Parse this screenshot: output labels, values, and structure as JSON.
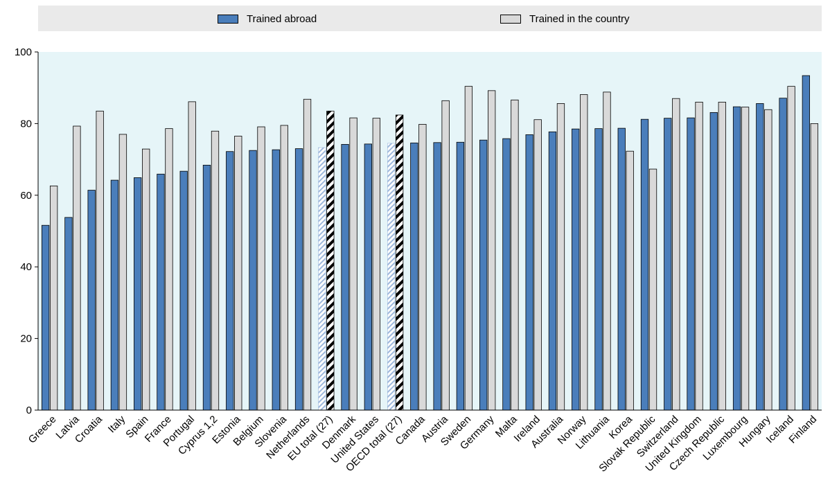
{
  "chart_data": {
    "type": "bar",
    "ylim": [
      0,
      100
    ],
    "yticks": [
      0,
      20,
      40,
      60,
      80,
      100
    ],
    "grid": false,
    "legend_position": "top",
    "colors": {
      "abroad": "#4a7ebb",
      "country": "#d9d9d9",
      "plot_bg": "#e6f5f8",
      "legend_bg": "#eaeaea"
    },
    "aggregate_categories": [
      "EU total (27)",
      "OECD total (27)"
    ],
    "categories": [
      "Greece",
      "Latvia",
      "Croatia",
      "Italy",
      "Spain",
      "France",
      "Portugal",
      "Cyprus 1,2",
      "Estonia",
      "Belgium",
      "Slovenia",
      "Netherlands",
      "EU total (27)",
      "Denmark",
      "United States",
      "OECD total (27)",
      "Canada",
      "Austria",
      "Sweden",
      "Germany",
      "Malta",
      "Ireland",
      "Australia",
      "Norway",
      "Lithuania",
      "Korea",
      "Slovak Republic",
      "Switzerland",
      "United Kingdom",
      "Czech Republic",
      "Luxembourg",
      "Hungary",
      "Iceland",
      "Finland"
    ],
    "series": [
      {
        "name": "Trained abroad",
        "values": [
          51.6,
          53.8,
          61.4,
          64.2,
          64.9,
          65.9,
          66.7,
          68.4,
          72.2,
          72.5,
          72.7,
          73.0,
          73.3,
          74.2,
          74.3,
          74.5,
          74.6,
          74.7,
          74.8,
          75.4,
          75.8,
          76.9,
          77.7,
          78.5,
          78.6,
          78.7,
          81.2,
          81.5,
          81.6,
          83.1,
          84.7,
          85.6,
          87.1,
          93.4
        ]
      },
      {
        "name": "Trained in the country",
        "values": [
          62.6,
          79.3,
          83.5,
          77.0,
          72.9,
          78.6,
          86.1,
          77.9,
          76.5,
          79.1,
          79.5,
          86.8,
          83.5,
          81.6,
          81.5,
          82.4,
          79.8,
          86.4,
          90.4,
          89.2,
          86.6,
          81.1,
          85.6,
          88.1,
          88.8,
          72.3,
          67.3,
          87.0,
          86.0,
          86.0,
          84.6,
          83.9,
          90.4,
          80.0
        ]
      }
    ]
  }
}
